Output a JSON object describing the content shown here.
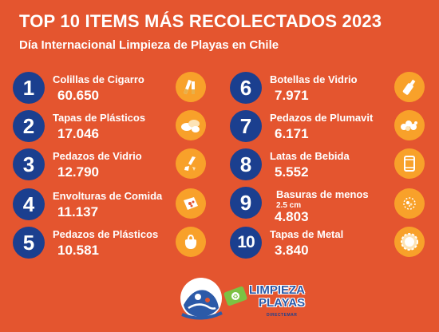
{
  "header": {
    "title": "TOP 10 ITEMS MÁS RECOLECTADOS 2023",
    "subtitle": "Día Internacional Limpieza de Playas en Chile"
  },
  "items": [
    {
      "rank": "1",
      "label": "Colillas de Cigarro",
      "value": "60.650",
      "icon": "cigarette-icon"
    },
    {
      "rank": "2",
      "label": "Tapas de Plásticos",
      "value": "17.046",
      "icon": "plastic-caps-icon"
    },
    {
      "rank": "3",
      "label": "Pedazos de Vidrio",
      "value": "12.790",
      "icon": "broken-glass-icon"
    },
    {
      "rank": "4",
      "label": "Envolturas de Comida",
      "value": "11.137",
      "icon": "food-wrapper-icon"
    },
    {
      "rank": "5",
      "label": "Pedazos de Plásticos",
      "value": "10.581",
      "icon": "plastic-bag-icon"
    },
    {
      "rank": "6",
      "label": "Botellas de Vidrio",
      "value": "7.971",
      "icon": "glass-bottle-icon"
    },
    {
      "rank": "7",
      "label": "Pedazos de Plumavit",
      "value": "6.171",
      "icon": "styrofoam-icon"
    },
    {
      "rank": "8",
      "label": "Latas de Bebida",
      "value": "5.552",
      "icon": "can-icon"
    },
    {
      "rank": "9",
      "label": "Basuras de menos",
      "sublabel": "2.5 cm",
      "value": "4.803",
      "icon": "small-debris-icon"
    },
    {
      "rank": "10",
      "label": "Tapas de Metal",
      "value": "3.840",
      "icon": "metal-cap-icon"
    }
  ],
  "logo": {
    "line1": "LIMPIEZA",
    "line2": "PLAYAS",
    "small": "DIRECTEMAR"
  },
  "colors": {
    "background": "#e4552f",
    "badge": "#1b3f8f",
    "icon_circle": "#f8a12a"
  }
}
